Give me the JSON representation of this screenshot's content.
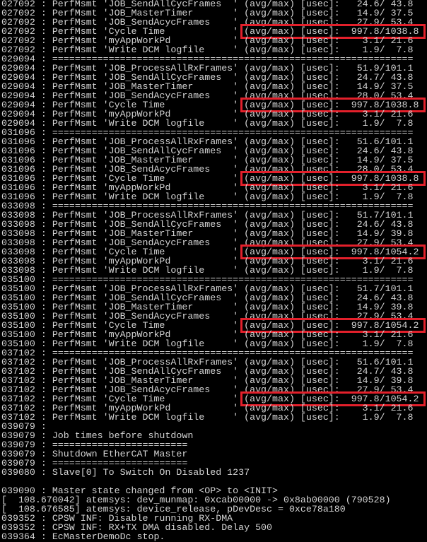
{
  "terminal": {
    "highlight_color": "#e3202b",
    "text_color": "#d4d4d4",
    "background": "#000000",
    "highlighted_lines": [
      3,
      11,
      19,
      27,
      35,
      43
    ],
    "lines": [
      "027092 : PerfMsmt 'JOB_SendAllCycFrames  ' (avg/max) [usec]:   24.6/ 43.8",
      "027092 : PerfMsmt 'JOB_MasterTimer       ' (avg/max) [usec]:   14.9/ 37.5",
      "027092 : PerfMsmt 'JOB_SendAcycFrames    ' (avg/max) [usec]:   27.9/ 53.4",
      "027092 : PerfMsmt 'Cycle Time            ' (avg/max) [usec]:  997.8/1038.8",
      "027092 : PerfMsmt 'myAppWorkPd           ' (avg/max) [usec]:    3.1/ 21.6",
      "027092 : PerfMsmt 'Write DCM logfile     ' (avg/max) [usec]:    1.9/  7.8",
      "029094 : ================================================================",
      "029094 : PerfMsmt 'JOB_ProcessAllRxFrames' (avg/max) [usec]:   51.9/101.1",
      "029094 : PerfMsmt 'JOB_SendAllCycFrames  ' (avg/max) [usec]:   24.7/ 43.8",
      "029094 : PerfMsmt 'JOB_MasterTimer       ' (avg/max) [usec]:   14.9/ 37.5",
      "029094 : PerfMsmt 'JOB_SendAcycFrames    ' (avg/max) [usec]:   28.0/ 53.4",
      "029094 : PerfMsmt 'Cycle Time            ' (avg/max) [usec]:  997.8/1038.8",
      "029094 : PerfMsmt 'myAppWorkPd           ' (avg/max) [usec]:    3.1/ 21.6",
      "029094 : PerfMsmt 'Write DCM logfile     ' (avg/max) [usec]:    1.9/  7.8",
      "031096 : ================================================================",
      "031096 : PerfMsmt 'JOB_ProcessAllRxFrames' (avg/max) [usec]:   51.6/101.1",
      "031096 : PerfMsmt 'JOB_SendAllCycFrames  ' (avg/max) [usec]:   24.6/ 43.8",
      "031096 : PerfMsmt 'JOB_MasterTimer       ' (avg/max) [usec]:   14.9/ 37.5",
      "031096 : PerfMsmt 'JOB_SendAcycFrames    ' (avg/max) [usec]:   28.0/ 53.4",
      "031096 : PerfMsmt 'Cycle Time            ' (avg/max) [usec]:  997.8/1038.8",
      "031096 : PerfMsmt 'myAppWorkPd           ' (avg/max) [usec]:    3.1/ 21.6",
      "031096 : PerfMsmt 'Write DCM logfile     ' (avg/max) [usec]:    1.9/  7.8",
      "033098 : ================================================================",
      "033098 : PerfMsmt 'JOB_ProcessAllRxFrames' (avg/max) [usec]:   51.7/101.1",
      "033098 : PerfMsmt 'JOB_SendAllCycFrames  ' (avg/max) [usec]:   24.6/ 43.8",
      "033098 : PerfMsmt 'JOB_MasterTimer       ' (avg/max) [usec]:   14.9/ 39.8",
      "033098 : PerfMsmt 'JOB_SendAcycFrames    ' (avg/max) [usec]:   27.9/ 53.4",
      "033098 : PerfMsmt 'Cycle Time            ' (avg/max) [usec]:  997.8/1054.2",
      "033098 : PerfMsmt 'myAppWorkPd           ' (avg/max) [usec]:    3.1/ 21.6",
      "033098 : PerfMsmt 'Write DCM logfile     ' (avg/max) [usec]:    1.9/  7.8",
      "035100 : ================================================================",
      "035100 : PerfMsmt 'JOB_ProcessAllRxFrames' (avg/max) [usec]:   51.7/101.1",
      "035100 : PerfMsmt 'JOB_SendAllCycFrames  ' (avg/max) [usec]:   24.6/ 43.8",
      "035100 : PerfMsmt 'JOB_MasterTimer       ' (avg/max) [usec]:   14.9/ 39.8",
      "035100 : PerfMsmt 'JOB_SendAcycFrames    ' (avg/max) [usec]:   27.9/ 53.4",
      "035100 : PerfMsmt 'Cycle Time            ' (avg/max) [usec]:  997.8/1054.2",
      "035100 : PerfMsmt 'myAppWorkPd           ' (avg/max) [usec]:    3.1/ 21.6",
      "035100 : PerfMsmt 'Write DCM logfile     ' (avg/max) [usec]:    1.9/  7.8",
      "037102 : ================================================================",
      "037102 : PerfMsmt 'JOB_ProcessAllRxFrames' (avg/max) [usec]:   51.6/101.1",
      "037102 : PerfMsmt 'JOB_SendAllCycFrames  ' (avg/max) [usec]:   24.7/ 43.8",
      "037102 : PerfMsmt 'JOB_MasterTimer       ' (avg/max) [usec]:   14.9/ 39.8",
      "037102 : PerfMsmt 'JOB_SendAcycFrames    ' (avg/max) [usec]:   27.9/ 53.4",
      "037102 : PerfMsmt 'Cycle Time            ' (avg/max) [usec]:  997.8/1054.2",
      "037102 : PerfMsmt 'myAppWorkPd           ' (avg/max) [usec]:    3.1/ 21.6",
      "037102 : PerfMsmt 'Write DCM logfile     ' (avg/max) [usec]:    1.9/  7.8",
      "039079 : ",
      "039079 : Job times before shutdown",
      "039079 : ========================",
      "039079 : Shutdown EtherCAT Master",
      "039079 : ========================",
      "039080 : Slave[0] To Switch On Disabled 1237",
      "",
      "039090 : Master state changed from <OP> to <INIT>",
      "[  108.670042] atemsys: dev_munmap: 0xcab00000 -> 0x8ab00000 (790528)",
      "[  108.676585] atemsys: device_release, pDevDesc = 0xce78a180",
      "039352 : CPSW INF: Disable running RX-DMA",
      "039352 : CPSW INF: RX+TX DMA disabled. Delay 500",
      "039364 : EcMasterDemoDc stop."
    ]
  }
}
